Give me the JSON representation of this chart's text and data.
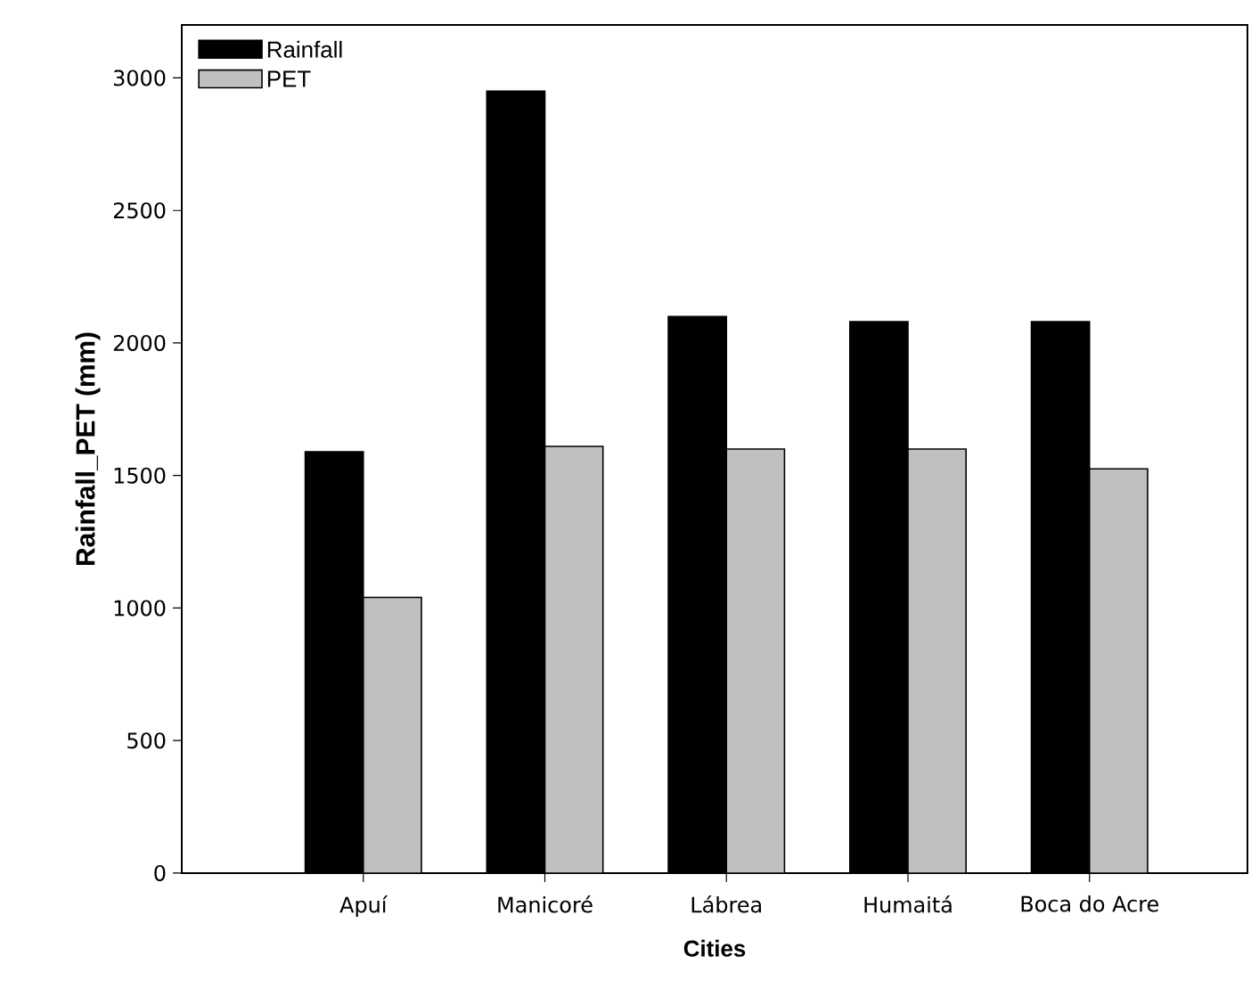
{
  "chart_data": {
    "type": "bar",
    "xlabel": "Cities",
    "ylabel": "Rainfall_PET (mm)",
    "categories": [
      "Apuí",
      "Manicoré",
      "Lábrea",
      "Humaitá",
      "Boca do Acre"
    ],
    "series": [
      {
        "name": "Rainfall",
        "color": "#000000",
        "values": [
          1590,
          2950,
          2100,
          2080,
          2080
        ]
      },
      {
        "name": "PET",
        "color": "#c0c0c0",
        "values": [
          1040,
          1610,
          1600,
          1600,
          1525
        ]
      }
    ],
    "ylim": [
      0,
      3200
    ],
    "yticks": [
      0,
      500,
      1000,
      1500,
      2000,
      2500,
      3000
    ],
    "grid": false,
    "legend": "top left"
  }
}
